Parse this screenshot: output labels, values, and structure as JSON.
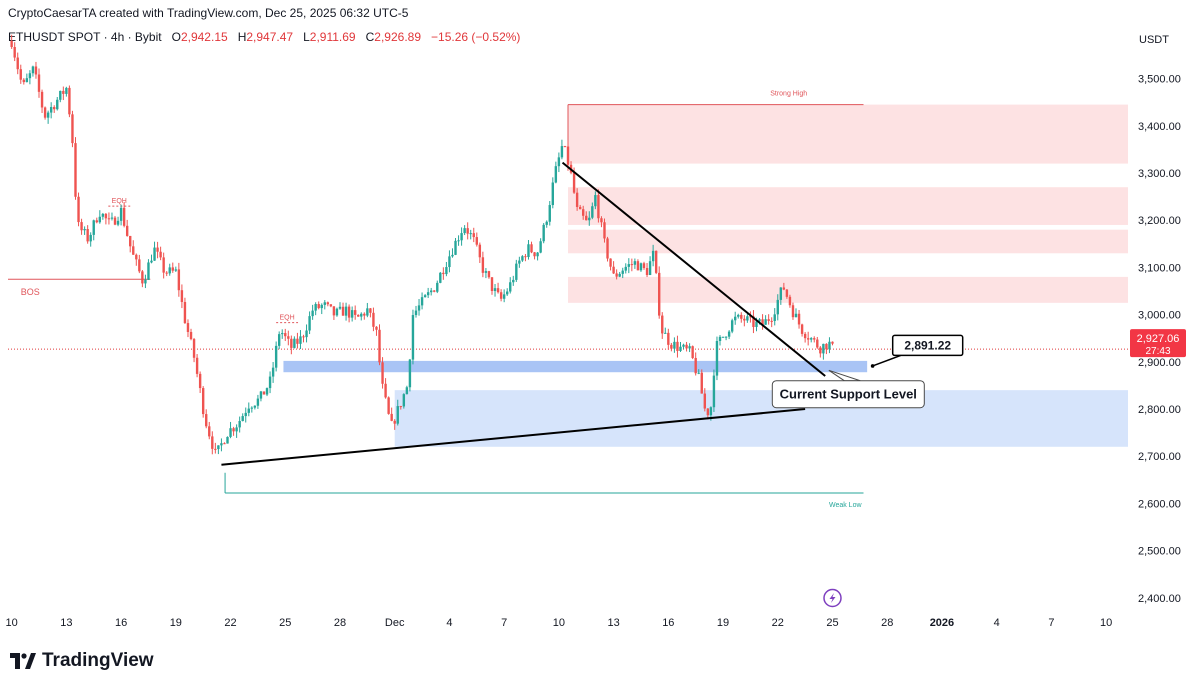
{
  "header": {
    "text": "CryptoCaesarTA created with TradingView.com, Dec 25, 2025 06:32 UTC-5"
  },
  "ohlc": {
    "symbol": "ETHUSDT SPOT · 4h · Bybit",
    "o_label": "O",
    "o": "2,942.15",
    "h_label": "H",
    "h": "2,947.47",
    "l_label": "L",
    "l": "2,911.69",
    "c_label": "C",
    "c": "2,926.89",
    "change": "−15.26 (−0.52%)"
  },
  "footer": {
    "brand": "TradingView"
  },
  "chart_data": {
    "type": "candlestick",
    "symbol": "ETHUSDT",
    "currency_label": "USDT",
    "y_axis": {
      "min": 2370,
      "max": 3620,
      "ticks": [
        2400,
        2500,
        2600,
        2700,
        2800,
        2900,
        3000,
        3100,
        3200,
        3300,
        3400,
        3500
      ],
      "tick_labels": [
        "2,400.00",
        "2,500.00",
        "2,600.00",
        "2,700.00",
        "2,800.00",
        "2,900.00",
        "3,000.00",
        "3,100.00",
        "3,200.00",
        "3,300.00",
        "3,400.00",
        "3,500.00"
      ]
    },
    "x_axis": {
      "start_day": 9.8,
      "end_day": 71.2,
      "ticks": [
        {
          "day": 10,
          "label": "10"
        },
        {
          "day": 13,
          "label": "13"
        },
        {
          "day": 16,
          "label": "16"
        },
        {
          "day": 19,
          "label": "19"
        },
        {
          "day": 22,
          "label": "22"
        },
        {
          "day": 25,
          "label": "25"
        },
        {
          "day": 28,
          "label": "28"
        },
        {
          "day": 31,
          "label": "Dec"
        },
        {
          "day": 34,
          "label": "4"
        },
        {
          "day": 37,
          "label": "7"
        },
        {
          "day": 40,
          "label": "10"
        },
        {
          "day": 43,
          "label": "13"
        },
        {
          "day": 46,
          "label": "16"
        },
        {
          "day": 49,
          "label": "19"
        },
        {
          "day": 52,
          "label": "22"
        },
        {
          "day": 55,
          "label": "25"
        },
        {
          "day": 58,
          "label": "28"
        },
        {
          "day": 61,
          "label": "2026",
          "bold": true
        },
        {
          "day": 64,
          "label": "4"
        },
        {
          "day": 67,
          "label": "7"
        },
        {
          "day": 70,
          "label": "10"
        }
      ]
    },
    "price_path": [
      [
        10.0,
        3580
      ],
      [
        10.6,
        3480
      ],
      [
        11.2,
        3520
      ],
      [
        11.8,
        3420
      ],
      [
        12.4,
        3450
      ],
      [
        13.0,
        3480
      ],
      [
        13.3,
        3390
      ],
      [
        13.6,
        3190
      ],
      [
        14.2,
        3160
      ],
      [
        14.8,
        3220
      ],
      [
        15.4,
        3190
      ],
      [
        16.0,
        3220
      ],
      [
        16.6,
        3130
      ],
      [
        17.2,
        3070
      ],
      [
        17.8,
        3140
      ],
      [
        18.4,
        3090
      ],
      [
        19.0,
        3090
      ],
      [
        19.5,
        2990
      ],
      [
        20.0,
        2910
      ],
      [
        20.6,
        2780
      ],
      [
        21.2,
        2700
      ],
      [
        21.8,
        2750
      ],
      [
        22.4,
        2770
      ],
      [
        23.0,
        2810
      ],
      [
        23.6,
        2820
      ],
      [
        24.2,
        2860
      ],
      [
        24.7,
        2970
      ],
      [
        25.3,
        2930
      ],
      [
        25.9,
        2950
      ],
      [
        26.5,
        3010
      ],
      [
        27.1,
        3020
      ],
      [
        27.7,
        3000
      ],
      [
        28.3,
        3010
      ],
      [
        28.9,
        2990
      ],
      [
        29.5,
        3010
      ],
      [
        30.0,
        2960
      ],
      [
        30.3,
        2850
      ],
      [
        30.8,
        2760
      ],
      [
        31.3,
        2810
      ],
      [
        31.7,
        2850
      ],
      [
        32.0,
        3000
      ],
      [
        32.6,
        3030
      ],
      [
        33.2,
        3060
      ],
      [
        33.8,
        3110
      ],
      [
        34.3,
        3150
      ],
      [
        34.8,
        3190
      ],
      [
        35.3,
        3160
      ],
      [
        35.8,
        3100
      ],
      [
        36.3,
        3060
      ],
      [
        36.8,
        3030
      ],
      [
        37.3,
        3060
      ],
      [
        37.8,
        3110
      ],
      [
        38.3,
        3140
      ],
      [
        38.8,
        3130
      ],
      [
        39.3,
        3200
      ],
      [
        39.8,
        3300
      ],
      [
        40.2,
        3360
      ],
      [
        40.6,
        3310
      ],
      [
        41.0,
        3220
      ],
      [
        41.6,
        3190
      ],
      [
        42.0,
        3250
      ],
      [
        42.5,
        3150
      ],
      [
        43.0,
        3080
      ],
      [
        43.6,
        3100
      ],
      [
        44.2,
        3110
      ],
      [
        44.8,
        3090
      ],
      [
        45.2,
        3130
      ],
      [
        45.6,
        2970
      ],
      [
        46.1,
        2940
      ],
      [
        46.6,
        2930
      ],
      [
        47.2,
        2920
      ],
      [
        47.7,
        2860
      ],
      [
        48.0,
        2800
      ],
      [
        48.3,
        2790
      ],
      [
        48.6,
        2930
      ],
      [
        49.1,
        2960
      ],
      [
        49.6,
        2990
      ],
      [
        50.2,
        2990
      ],
      [
        50.7,
        2980
      ],
      [
        51.2,
        2980
      ],
      [
        51.7,
        3000
      ],
      [
        52.0,
        3030
      ],
      [
        52.3,
        3060
      ],
      [
        52.8,
        3010
      ],
      [
        53.3,
        2970
      ],
      [
        53.8,
        2950
      ],
      [
        54.3,
        2930
      ],
      [
        54.8,
        2940
      ],
      [
        55.0,
        2927
      ]
    ],
    "supply_zones": [
      {
        "price_from": 3320,
        "price_to": 3445
      },
      {
        "price_from": 3190,
        "price_to": 3270
      },
      {
        "price_from": 3130,
        "price_to": 3180
      },
      {
        "price_from": 3025,
        "price_to": 3080
      }
    ],
    "demand_zones": [
      {
        "price_from": 2878,
        "price_to": 2902
      },
      {
        "price_from": 2720,
        "price_to": 2840
      }
    ],
    "levels": [
      {
        "label": "Strong High",
        "price": 3445
      },
      {
        "label": "Weak Low",
        "price": 2622
      },
      {
        "label": "BOS",
        "price": 3075
      },
      {
        "label": "EQH",
        "price": 3230
      },
      {
        "label": "EQH",
        "price": 2983
      }
    ],
    "trendlines": [
      {
        "name": "descending",
        "from": [
          40.2,
          3322
        ],
        "to": [
          54.6,
          2870
        ]
      },
      {
        "name": "ascending",
        "from": [
          21.5,
          2682
        ],
        "to": [
          53.5,
          2800
        ]
      }
    ],
    "current_price": {
      "value": "2,927.06",
      "price": 2927.06,
      "countdown": "27:43"
    },
    "callout": {
      "value": "2,891.22",
      "price": 2891.22
    },
    "annotation": "Current Support Level"
  }
}
